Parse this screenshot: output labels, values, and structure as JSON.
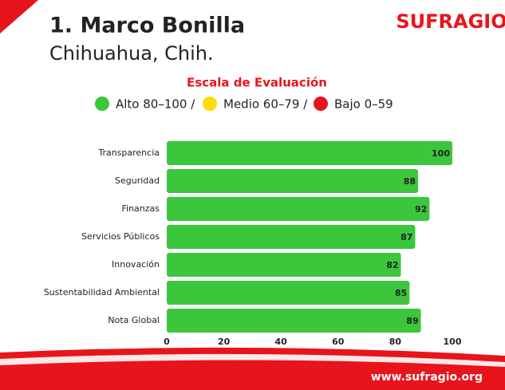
{
  "header": {
    "title": "1. Marco Bonilla",
    "subtitle": "Chihuahua, Chih.",
    "logo": "SUFRAGIO"
  },
  "legend": {
    "title": "Escala de Evaluación",
    "items": [
      {
        "label": "Alto 80–100 /",
        "color": "#3cc63c"
      },
      {
        "label": "Medio 60–79 /",
        "color": "#ffdd00"
      },
      {
        "label": "Bajo 0–59",
        "color": "#e8141b"
      }
    ]
  },
  "chart_data": {
    "type": "bar",
    "orientation": "horizontal",
    "categories": [
      "Transparencia",
      "Seguridad",
      "Finanzas",
      "Servicios Públicos",
      "Innovación",
      "Sustentabilidad Ambiental",
      "Nota Global"
    ],
    "values": [
      100,
      88,
      92,
      87,
      82,
      85,
      89
    ],
    "color": "#3cc63c",
    "xlim": [
      0,
      100
    ],
    "xticks": [
      0,
      20,
      40,
      60,
      80,
      100
    ]
  },
  "footer": {
    "url": "www.sufragio.org"
  }
}
